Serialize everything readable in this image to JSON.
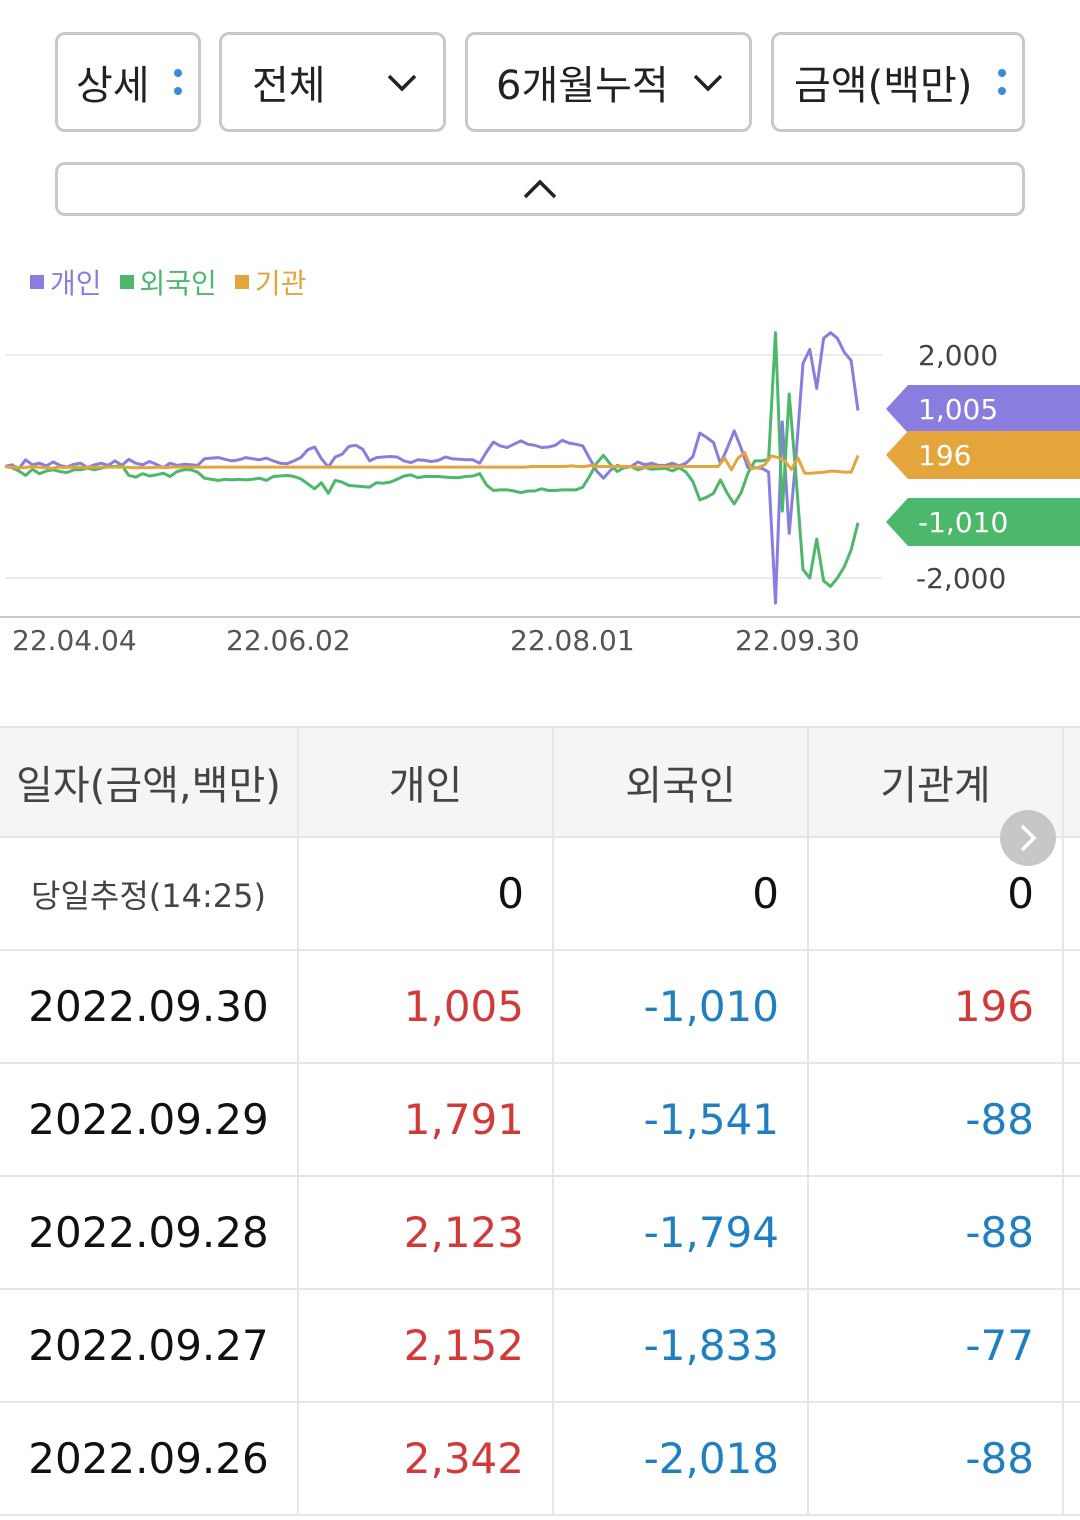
{
  "filters": [
    {
      "label": "상세",
      "control": "dots"
    },
    {
      "label": "전체",
      "control": "chevron"
    },
    {
      "label": "6개월누적",
      "control": "chevron"
    },
    {
      "label": "금액(백만)",
      "control": "dots"
    }
  ],
  "legend": [
    {
      "label": "개인",
      "color": "#8a7de0"
    },
    {
      "label": "외국인",
      "color": "#4cb86b"
    },
    {
      "label": "기관",
      "color": "#e3a53c"
    }
  ],
  "chart_data": {
    "type": "line",
    "x_ticks": [
      "22.04.04",
      "22.06.02",
      "22.08.01",
      "22.09.30"
    ],
    "y_ticks": [
      "2,000",
      "-2,000"
    ],
    "ylim": [
      -2300,
      2300
    ],
    "value_tags": [
      {
        "series": "개인",
        "label": "1,005",
        "value": 1005,
        "color": "#8a7de0"
      },
      {
        "series": "기관",
        "label": "196",
        "value": 196,
        "color": "#e3a53c"
      },
      {
        "series": "외국인",
        "label": "-1,010",
        "value": -1010,
        "color": "#4cb86b"
      }
    ],
    "series": [
      {
        "name": "개인",
        "color": "#8a7de0",
        "values": [
          0,
          30,
          -40,
          120,
          30,
          60,
          10,
          80,
          20,
          -10,
          40,
          60,
          -20,
          30,
          60,
          20,
          100,
          20,
          130,
          60,
          30,
          90,
          40,
          -20,
          60,
          20,
          40,
          30,
          20,
          140,
          150,
          160,
          130,
          100,
          120,
          160,
          140,
          120,
          150,
          100,
          60,
          50,
          100,
          160,
          300,
          350,
          140,
          -10,
          170,
          220,
          360,
          380,
          310,
          100,
          160,
          170,
          180,
          170,
          100,
          70,
          120,
          110,
          90,
          110,
          170,
          140,
          130,
          120,
          120,
          60,
          260,
          440,
          370,
          340,
          400,
          460,
          400,
          380,
          340,
          350,
          380,
          470,
          420,
          400,
          370,
          140,
          -80,
          -210,
          -70,
          20,
          -20,
          0,
          80,
          30,
          60,
          20,
          20,
          60,
          10,
          60,
          180,
          600,
          520,
          430,
          50,
          330,
          640,
          330,
          -20,
          -20,
          -30,
          -100,
          -2450,
          800,
          -1200,
          200,
          1850,
          2100,
          1400,
          2300,
          2400,
          2300,
          2050,
          1900,
          1005
        ]
      },
      {
        "name": "외국인",
        "color": "#4cb86b",
        "values": [
          0,
          -20,
          -80,
          -160,
          -50,
          -130,
          -80,
          -60,
          -90,
          -110,
          -60,
          -60,
          -30,
          -60,
          -30,
          0,
          0,
          20,
          -160,
          -190,
          -130,
          -170,
          -150,
          -120,
          -180,
          -90,
          -60,
          -60,
          -100,
          -210,
          -230,
          -250,
          -230,
          -240,
          -230,
          -240,
          -230,
          -210,
          -250,
          -180,
          -170,
          -160,
          -180,
          -220,
          -310,
          -400,
          -290,
          -480,
          -250,
          -280,
          -340,
          -350,
          -360,
          -370,
          -290,
          -300,
          -280,
          -230,
          -170,
          -150,
          -200,
          -180,
          -180,
          -180,
          -190,
          -200,
          -200,
          -180,
          -170,
          -130,
          -330,
          -430,
          -420,
          -420,
          -440,
          -470,
          -440,
          -440,
          -400,
          -430,
          -430,
          -420,
          -420,
          -420,
          -370,
          -170,
          60,
          200,
          40,
          -90,
          -20,
          0,
          -60,
          -20,
          -50,
          -40,
          -30,
          -80,
          -20,
          -100,
          -270,
          -600,
          -550,
          -480,
          -240,
          -480,
          -670,
          -470,
          -120,
          100,
          100,
          130,
          2400,
          -800,
          1300,
          -200,
          -1850,
          -2000,
          -1300,
          -2050,
          -2150,
          -2000,
          -1800,
          -1500,
          -1010
        ]
      },
      {
        "name": "기관",
        "color": "#e3a53c",
        "values": [
          0,
          -10,
          -20,
          -20,
          0,
          -10,
          -20,
          -30,
          -10,
          -20,
          -10,
          -10,
          -20,
          -10,
          -10,
          -10,
          -10,
          -10,
          -10,
          -20,
          -20,
          -20,
          -20,
          -10,
          -20,
          -10,
          -10,
          -10,
          -10,
          -10,
          -10,
          -10,
          -10,
          -10,
          -10,
          -10,
          -10,
          -10,
          -10,
          -10,
          -10,
          -10,
          -10,
          -10,
          -10,
          -10,
          -10,
          -10,
          -10,
          -10,
          -10,
          -10,
          -10,
          -10,
          -10,
          -10,
          -10,
          -10,
          -10,
          -10,
          -10,
          -10,
          -10,
          -10,
          -10,
          -10,
          -10,
          -10,
          -10,
          -10,
          -10,
          -10,
          -10,
          -10,
          -10,
          -10,
          -10,
          -10,
          -10,
          0,
          0,
          0,
          0,
          0,
          0,
          10,
          0,
          0,
          20,
          0,
          0,
          0,
          0,
          0,
          0,
          -10,
          -20,
          0,
          0,
          0,
          0,
          0,
          0,
          0,
          0,
          0,
          0,
          0,
          150,
          -60,
          150,
          250,
          -40,
          -20,
          30,
          190,
          160,
          100,
          -50,
          150,
          -120,
          -120,
          -110,
          -100,
          -80,
          -90,
          -100,
          -100,
          196
        ]
      }
    ]
  },
  "table": {
    "headers": [
      "일자(금액,백만)",
      "개인",
      "외국인",
      "기관계"
    ],
    "rows": [
      {
        "date": "당일추정(14:25)",
        "personal": "0",
        "foreign": "0",
        "institution": "0"
      },
      {
        "date": "2022.09.30",
        "personal": "1,005",
        "foreign": "-1,010",
        "institution": "196"
      },
      {
        "date": "2022.09.29",
        "personal": "1,791",
        "foreign": "-1,541",
        "institution": "-88"
      },
      {
        "date": "2022.09.28",
        "personal": "2,123",
        "foreign": "-1,794",
        "institution": "-88"
      },
      {
        "date": "2022.09.27",
        "personal": "2,152",
        "foreign": "-1,833",
        "institution": "-77"
      },
      {
        "date": "2022.09.26",
        "personal": "2,342",
        "foreign": "-2,018",
        "institution": "-88"
      }
    ]
  },
  "colors": {
    "positive": "#d23a3a",
    "negative": "#1f7fc0"
  }
}
